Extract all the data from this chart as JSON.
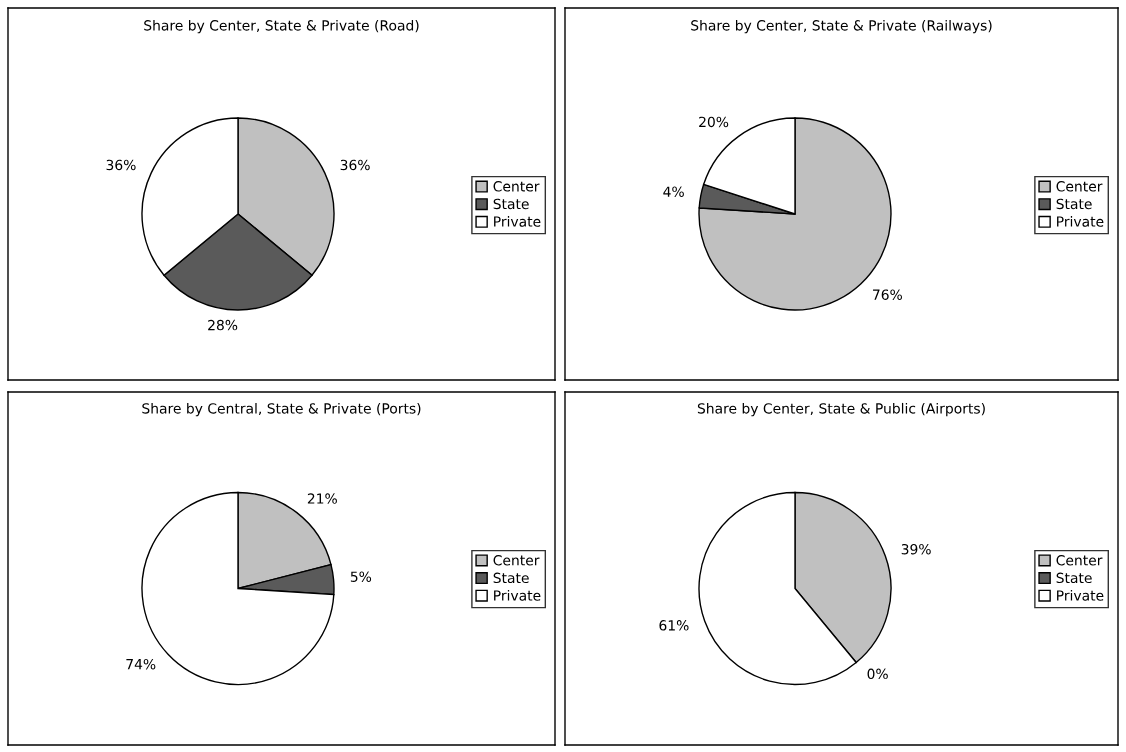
{
  "chart_data": [
    {
      "type": "pie",
      "title": "Share by Center, State & Private (Road)",
      "categories": [
        "Center",
        "State",
        "Private"
      ],
      "values": [
        36,
        28,
        36
      ],
      "colors": [
        "#c0c0c0",
        "#5a5a5a",
        "#ffffff"
      ],
      "value_labels": [
        "36%",
        "28%",
        "36%"
      ],
      "legend": "right"
    },
    {
      "type": "pie",
      "title": "Share by Center, State & Private (Railways)",
      "categories": [
        "Center",
        "State",
        "Private"
      ],
      "values": [
        76,
        4,
        20
      ],
      "colors": [
        "#c0c0c0",
        "#5a5a5a",
        "#ffffff"
      ],
      "value_labels": [
        "76%",
        "4%",
        "20%"
      ],
      "legend": "right"
    },
    {
      "type": "pie",
      "title": "Share by Central, State & Private (Ports)",
      "categories": [
        "Center",
        "State",
        "Private"
      ],
      "values": [
        21,
        5,
        74
      ],
      "colors": [
        "#c0c0c0",
        "#5a5a5a",
        "#ffffff"
      ],
      "value_labels": [
        "21%",
        "5%",
        "74%"
      ],
      "legend": "right"
    },
    {
      "type": "pie",
      "title": "Share by Center, State & Public (Airports)",
      "categories": [
        "Center",
        "State",
        "Private"
      ],
      "values": [
        39,
        0,
        61
      ],
      "colors": [
        "#c0c0c0",
        "#5a5a5a",
        "#ffffff"
      ],
      "value_labels": [
        "39%",
        "0%",
        "61%"
      ],
      "legend": "right"
    }
  ]
}
